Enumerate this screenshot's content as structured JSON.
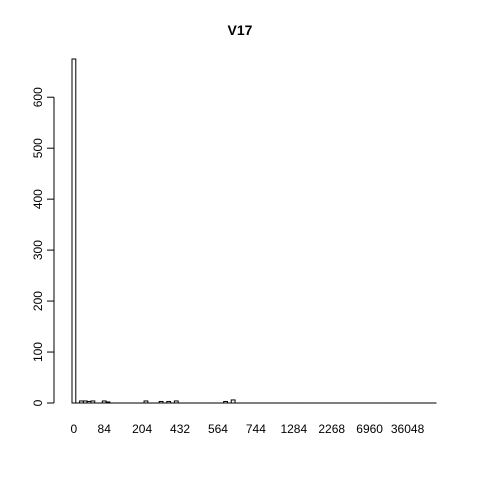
{
  "chart_data": {
    "type": "bar",
    "title": "V17",
    "xlabel": "",
    "ylabel": "",
    "ylim": [
      0,
      675
    ],
    "y_ticks": [
      0,
      100,
      200,
      300,
      400,
      500,
      600
    ],
    "x_tick_labels": [
      "0",
      "84",
      "204",
      "432",
      "564",
      "744",
      "1284",
      "2268",
      "6960",
      "36048"
    ],
    "x_tick_positions": [
      0,
      8,
      18,
      28,
      38,
      48,
      58,
      68,
      78,
      88
    ],
    "categories_count": 96,
    "values": [
      675,
      0,
      4,
      4,
      3,
      4,
      0,
      0,
      4,
      2,
      0,
      0,
      0,
      0,
      0,
      0,
      0,
      0,
      0,
      4,
      0,
      0,
      0,
      3,
      0,
      3,
      0,
      4,
      0,
      0,
      0,
      0,
      0,
      0,
      0,
      0,
      0,
      0,
      0,
      0,
      3,
      0,
      6,
      0,
      0,
      0,
      0,
      0,
      0,
      0,
      0,
      0,
      0,
      0,
      0,
      0,
      0,
      0,
      0,
      0,
      0,
      0,
      0,
      0,
      0,
      0,
      0,
      0,
      0,
      0,
      0,
      0,
      0,
      0,
      0,
      0,
      0,
      0,
      0,
      0,
      0,
      0,
      0,
      0,
      0,
      0,
      0,
      0,
      0,
      0,
      0,
      0,
      0,
      0,
      0,
      0
    ],
    "bar_fill": "#ffffff",
    "bar_stroke": "#000000"
  }
}
